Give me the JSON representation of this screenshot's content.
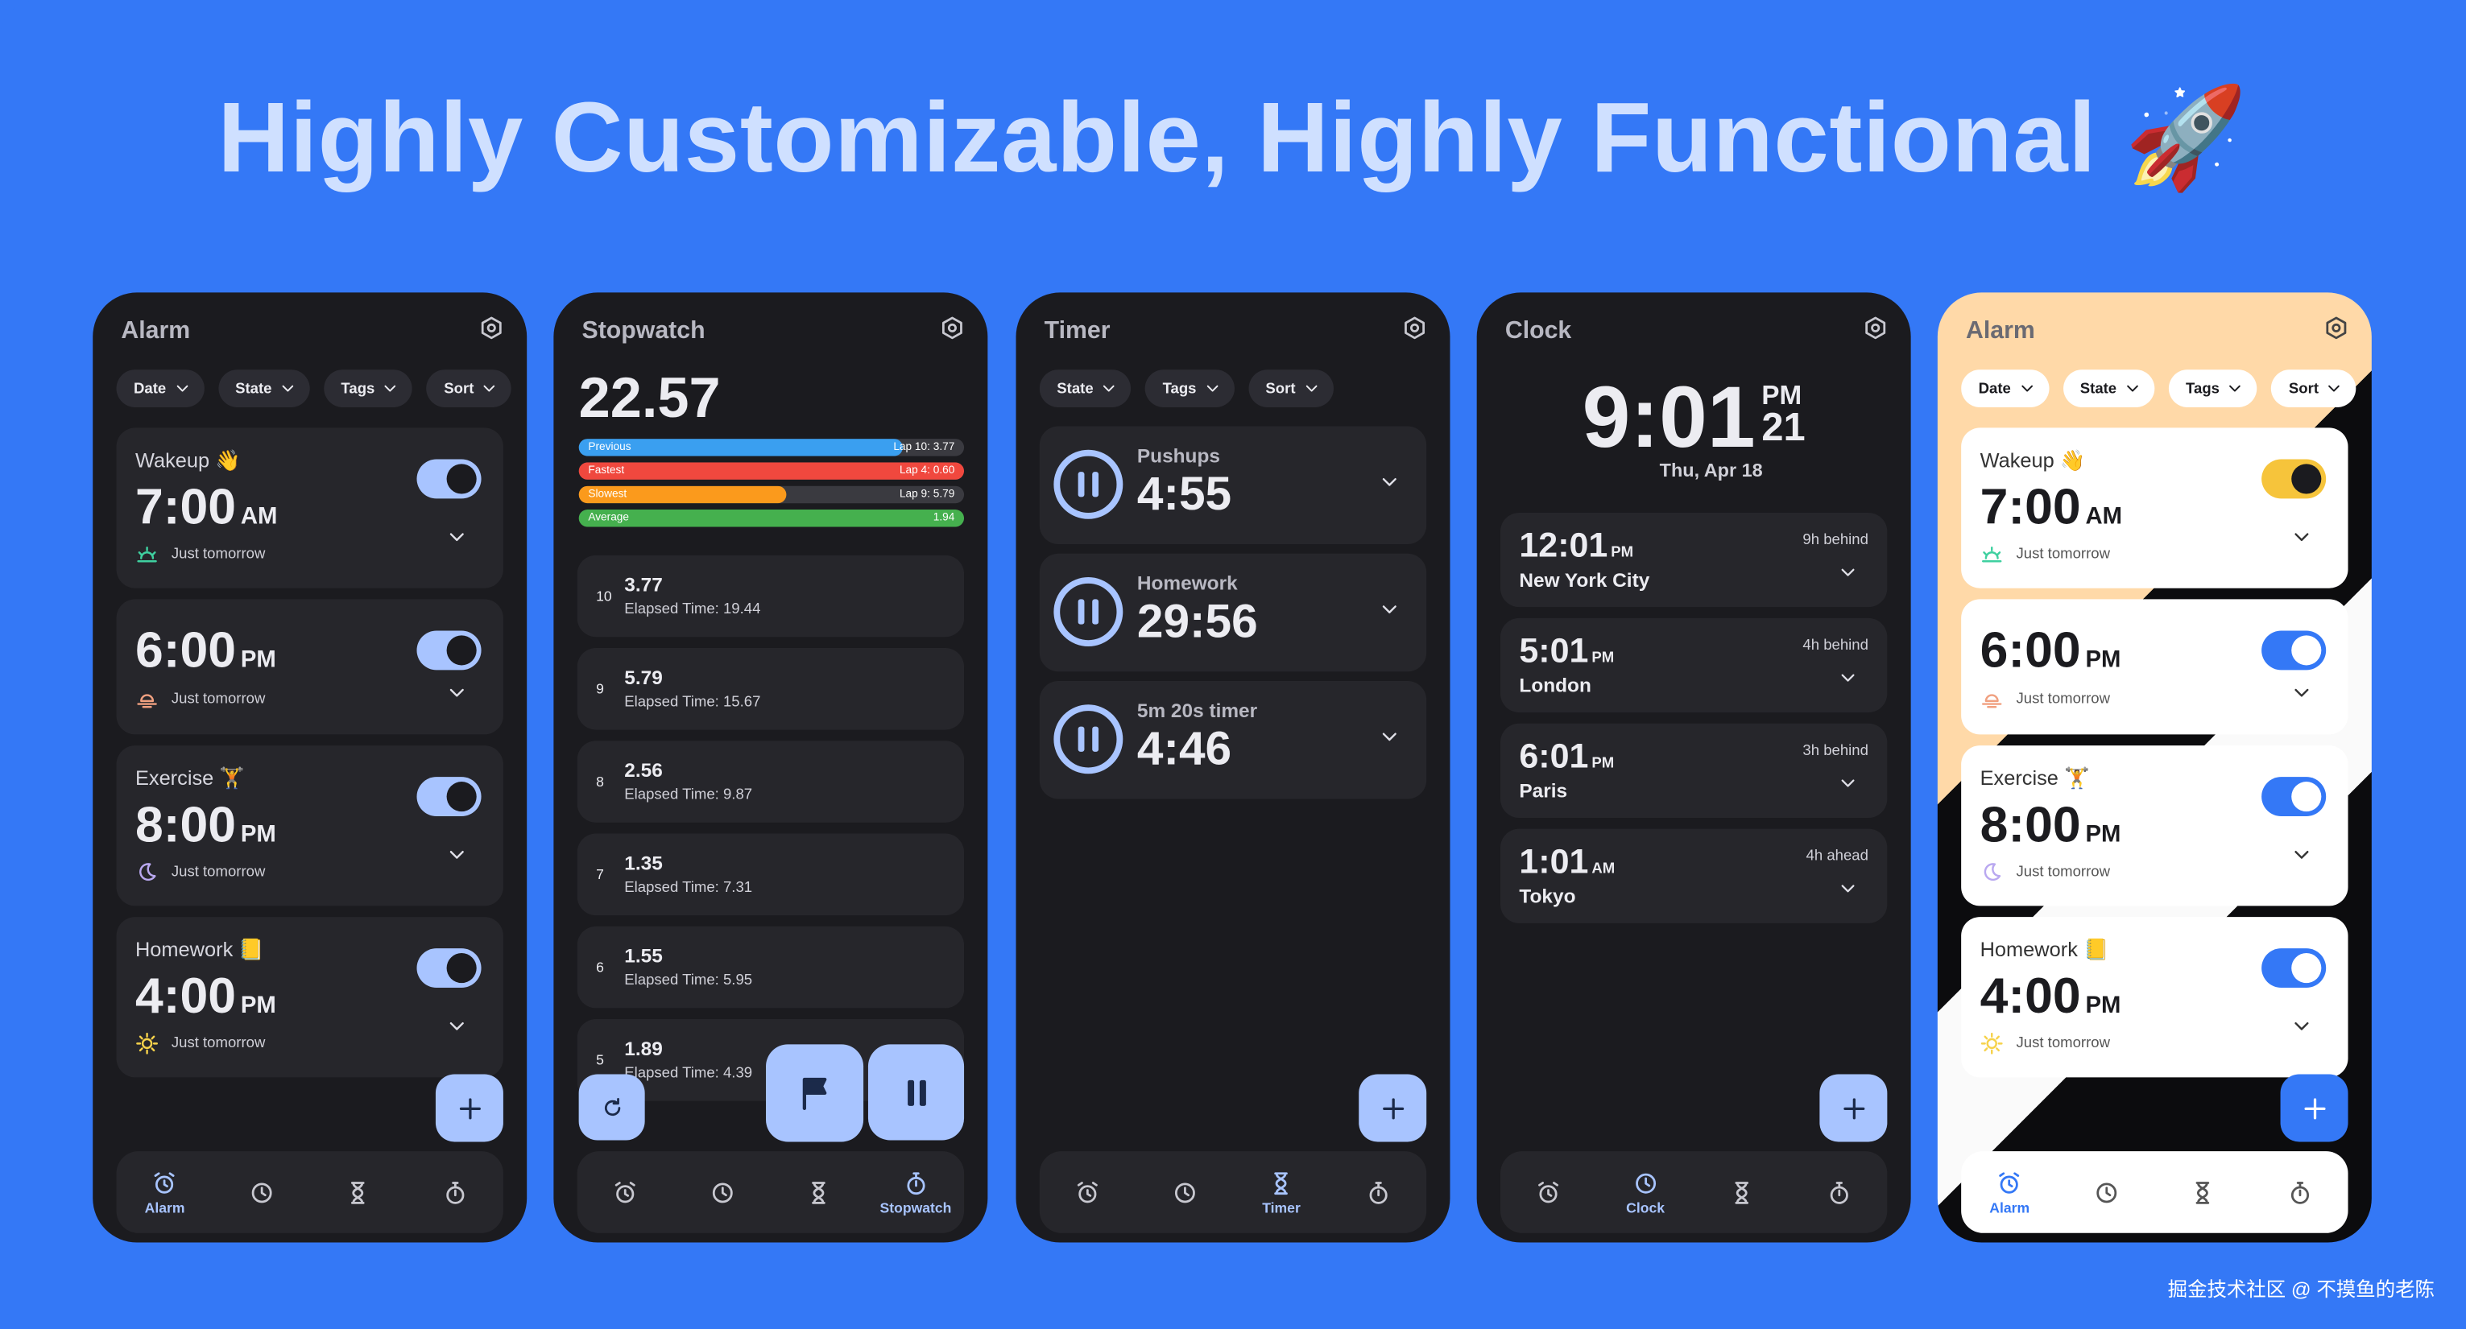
{
  "title": "Highly Customizable, Highly Functional 🚀",
  "watermark": "掘金技术社区 @ 不摸鱼的老陈",
  "alarm": {
    "header": "Alarm",
    "filters": [
      "Date",
      "State",
      "Tags",
      "Sort"
    ],
    "alarms": [
      {
        "label": "Wakeup 👋",
        "time": "7:00",
        "period": "AM",
        "repeat": "Just tomorrow"
      },
      {
        "time": "6:00",
        "period": "PM",
        "repeat": "Just tomorrow"
      },
      {
        "label": "Exercise 🏋",
        "time": "8:00",
        "period": "PM",
        "repeat": "Just tomorrow"
      },
      {
        "label": "Homework 📒",
        "time": "4:00",
        "period": "PM",
        "repeat": "Just tomorrow"
      }
    ],
    "nav_active": "Alarm"
  },
  "stopwatch": {
    "header": "Stopwatch",
    "time": "22.57",
    "bars": [
      {
        "label": "Previous",
        "detail": "Lap 10: 3.77"
      },
      {
        "label": "Fastest",
        "detail": "Lap 4: 0.60"
      },
      {
        "label": "Slowest",
        "detail": "Lap 9: 5.79"
      },
      {
        "label": "Average",
        "detail": "1.94"
      }
    ],
    "laps": [
      {
        "index": "10",
        "time": "3.77",
        "elapsed": "Elapsed Time: 19.44"
      },
      {
        "index": "9",
        "time": "5.79",
        "elapsed": "Elapsed Time: 15.67"
      },
      {
        "index": "8",
        "time": "2.56",
        "elapsed": "Elapsed Time: 9.87"
      },
      {
        "index": "7",
        "time": "1.35",
        "elapsed": "Elapsed Time: 7.31"
      },
      {
        "index": "6",
        "time": "1.55",
        "elapsed": "Elapsed Time: 5.95"
      },
      {
        "index": "5",
        "time": "1.89",
        "elapsed": "Elapsed Time: 4.39"
      }
    ],
    "nav_active": "Stopwatch"
  },
  "timer": {
    "header": "Timer",
    "filters": [
      "State",
      "Tags",
      "Sort"
    ],
    "timers": [
      {
        "name": "Pushups",
        "time": "4:55"
      },
      {
        "name": "Homework",
        "time": "29:56"
      },
      {
        "name": "5m 20s timer",
        "time": "4:46"
      }
    ],
    "nav_active": "Timer"
  },
  "clock": {
    "header": "Clock",
    "time": "9:01",
    "period": "PM",
    "seconds": "21",
    "date": "Thu, Apr 18",
    "cities": [
      {
        "time": "12:01",
        "period": "PM",
        "city": "New York City",
        "offset": "9h behind"
      },
      {
        "time": "5:01",
        "period": "PM",
        "city": "London",
        "offset": "4h behind"
      },
      {
        "time": "6:01",
        "period": "PM",
        "city": "Paris",
        "offset": "3h behind"
      },
      {
        "time": "1:01",
        "period": "AM",
        "city": "Tokyo",
        "offset": "4h ahead"
      }
    ],
    "nav_active": "Clock"
  },
  "alarm_light": {
    "header": "Alarm",
    "filters": [
      "Date",
      "State",
      "Tags",
      "Sort"
    ],
    "alarms": [
      {
        "label": "Wakeup 👋",
        "time": "7:00",
        "period": "AM",
        "repeat": "Just tomorrow"
      },
      {
        "time": "6:00",
        "period": "PM",
        "repeat": "Just tomorrow"
      },
      {
        "label": "Exercise 🏋",
        "time": "8:00",
        "period": "PM",
        "repeat": "Just tomorrow"
      },
      {
        "label": "Homework 📒",
        "time": "4:00",
        "period": "PM",
        "repeat": "Just tomorrow"
      }
    ],
    "nav_active": "Alarm"
  }
}
